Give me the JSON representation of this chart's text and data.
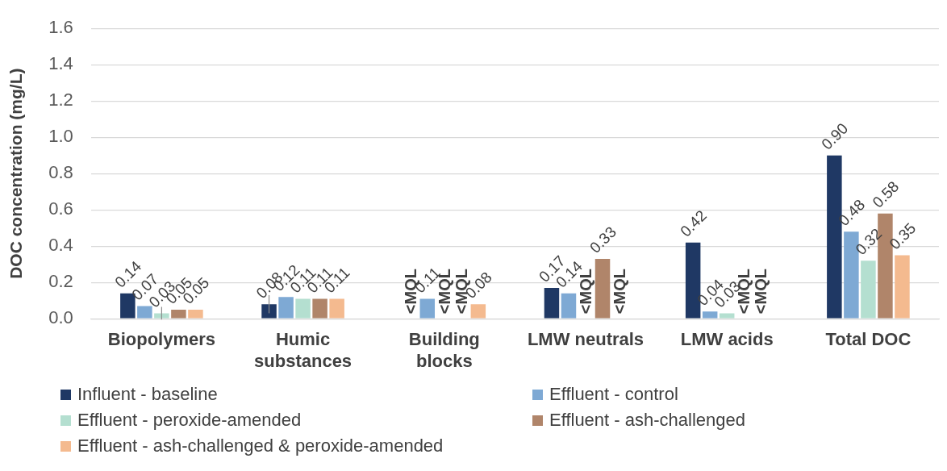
{
  "chart_data": {
    "type": "bar",
    "ylabel": "DOC concentration (mg/L)",
    "categories": [
      "Biopolymers",
      "Humic substances",
      "Building blocks",
      "LMW neutrals",
      "LMW acids",
      "Total DOC"
    ],
    "series": [
      {
        "name": "Influent - baseline",
        "color": "#1f3864",
        "values": [
          0.14,
          0.08,
          null,
          0.17,
          0.42,
          0.9
        ],
        "value_labels": [
          "0.14",
          "0.08",
          "<MQL",
          "0.17",
          "0.42",
          "0.90"
        ],
        "errors": [
          null,
          0.05,
          null,
          null,
          null,
          null
        ]
      },
      {
        "name": "Effluent - control",
        "color": "#7ea9d4",
        "values": [
          0.07,
          0.12,
          0.11,
          0.14,
          0.04,
          0.48
        ],
        "value_labels": [
          "0.07",
          "0.12",
          "0.11",
          "0.14",
          "0.04",
          "0.48"
        ]
      },
      {
        "name": "Effluent - peroxide-amended",
        "color": "#b4dfd0",
        "values": [
          0.03,
          0.11,
          null,
          null,
          0.03,
          0.32
        ],
        "value_labels": [
          "0.03",
          "0.11",
          "<MQL",
          "<MQL",
          "0.03",
          "0.32"
        ],
        "errors": [
          0.035,
          null,
          null,
          null,
          null,
          null
        ]
      },
      {
        "name": "Effluent - ash-challenged",
        "color": "#b0856a",
        "values": [
          0.05,
          0.11,
          null,
          0.33,
          null,
          0.58
        ],
        "value_labels": [
          "0.05",
          "0.11",
          "<MQL",
          "0.33",
          "<MQL",
          "0.58"
        ]
      },
      {
        "name": "Effluent - ash-challenged & peroxide-amended",
        "color": "#f4ba8f",
        "values": [
          0.05,
          0.11,
          0.08,
          null,
          null,
          0.35
        ],
        "value_labels": [
          "0.05",
          "0.11",
          "0.08",
          "<MQL",
          "<MQL",
          "0.35"
        ]
      }
    ],
    "ylim": [
      0,
      1.6
    ],
    "yticks": [
      {
        "value": 0,
        "label": "0.0"
      },
      0.2,
      0.4,
      0.6,
      0.8,
      {
        "value": 1,
        "label": "1.0"
      },
      1.2,
      1.4,
      1.6
    ],
    "grid": "y",
    "legend": "bottom"
  }
}
